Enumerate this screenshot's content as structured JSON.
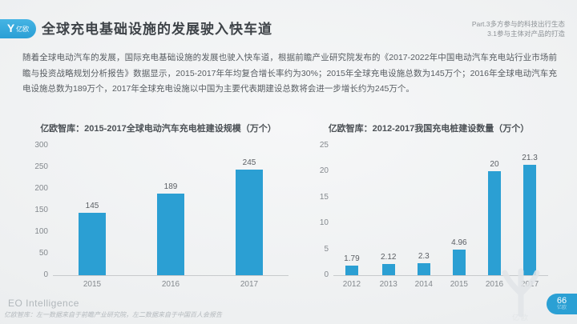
{
  "header": {
    "logo_text": "亿欧",
    "logo_glyph": "Y",
    "title": "全球充电基础设施的发展驶入快车道",
    "part_line1": "Part.3多方参与的科技出行生态",
    "part_line2": "3.1参与主体对产品的打造"
  },
  "paragraph": "随着全球电动汽车的发展，国际充电基础设施的发展也驶入快车道，根据前瞻产业研究院发布的《2017-2022年中国电动汽车充电站行业市场前瞻与投资战略规划分析报告》数据显示，2015-2017年年均复合增长率约为30%；2015年全球充电设施总数为145万个；2016年全球电动汽车充电设施总数为189万个，2017年全球充电设施以中国为主要代表期建设总数将会进一步增长约为245万个。",
  "chart_data": [
    {
      "type": "bar",
      "title": "亿欧智库：2015-2017全球电动汽车充电桩建设规模（万个）",
      "categories": [
        "2015",
        "2016",
        "2017"
      ],
      "values": [
        145,
        189,
        245
      ],
      "xlabel": "",
      "ylabel": "",
      "ylim": [
        0,
        300
      ],
      "yticks": [
        0,
        50,
        100,
        150,
        200,
        250,
        300
      ],
      "grid": false,
      "legend": "none",
      "bar_color": "#2b9fd3"
    },
    {
      "type": "bar",
      "title": "亿欧智库：2012-2017我国充电桩建设数量（万个）",
      "categories": [
        "2012",
        "2013",
        "2014",
        "2015",
        "2016",
        "2017"
      ],
      "values": [
        1.79,
        2.12,
        2.3,
        4.96,
        20,
        21.3
      ],
      "xlabel": "",
      "ylabel": "",
      "ylim": [
        0,
        25
      ],
      "yticks": [
        0,
        5,
        10,
        15,
        20,
        25
      ],
      "grid": false,
      "legend": "none",
      "bar_color": "#2b9fd3"
    }
  ],
  "footer": {
    "brand": "EO Intelligence",
    "note": "亿欧智库：左一数据来自于前瞻产业研究院，左二数据来自于中国百人会报告",
    "page_number": "66",
    "page_logo": "亿欧"
  },
  "colors": {
    "accent": "#2b9fd3",
    "title_text": "#3e4348",
    "body_text": "#575c61",
    "muted_text": "#8d9296",
    "axis_line": "#c7cacc"
  }
}
